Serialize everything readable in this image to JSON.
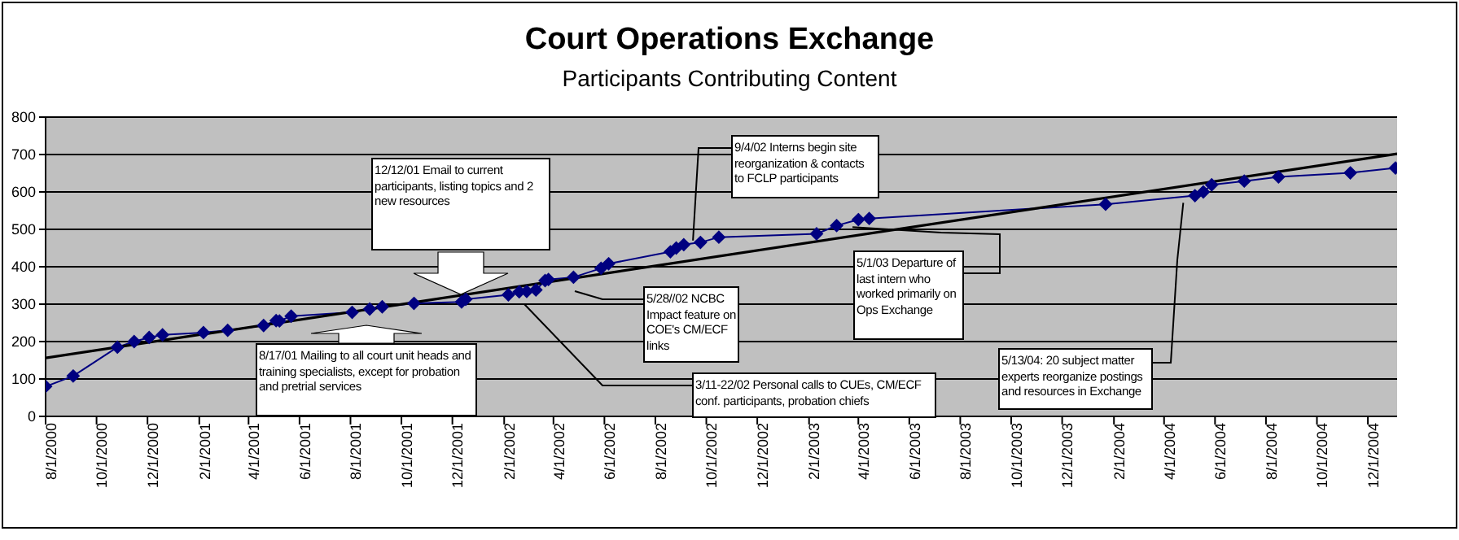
{
  "chart_data": {
    "type": "line",
    "title": "Court Operations Exchange",
    "subtitle": "Participants Contributing Content",
    "xlim": [
      "2000-08-01",
      "2005-01-05"
    ],
    "xticks": [
      {
        "value": "2000-08-01",
        "label": "8/1/2000"
      },
      {
        "value": "2000-10-01",
        "label": "10/1/2000"
      },
      {
        "value": "2000-12-01",
        "label": "12/1/2000"
      },
      {
        "value": "2001-02-01",
        "label": "2/1/2001"
      },
      {
        "value": "2001-04-01",
        "label": "4/1/2001"
      },
      {
        "value": "2001-06-01",
        "label": "6/1/2001"
      },
      {
        "value": "2001-08-01",
        "label": "8/1/2001"
      },
      {
        "value": "2001-10-01",
        "label": "10/1/2001"
      },
      {
        "value": "2001-12-01",
        "label": "12/1/2001"
      },
      {
        "value": "2002-02-01",
        "label": "2/1/2002"
      },
      {
        "value": "2002-04-01",
        "label": "4/1/2002"
      },
      {
        "value": "2002-06-01",
        "label": "6/1/2002"
      },
      {
        "value": "2002-08-01",
        "label": "8/1/2002"
      },
      {
        "value": "2002-10-01",
        "label": "10/1/2002"
      },
      {
        "value": "2002-12-01",
        "label": "12/1/2002"
      },
      {
        "value": "2003-02-01",
        "label": "2/1/2003"
      },
      {
        "value": "2003-04-01",
        "label": "4/1/2003"
      },
      {
        "value": "2003-06-01",
        "label": "6/1/2003"
      },
      {
        "value": "2003-08-01",
        "label": "8/1/2003"
      },
      {
        "value": "2003-10-01",
        "label": "10/1/2003"
      },
      {
        "value": "2003-12-01",
        "label": "12/1/2003"
      },
      {
        "value": "2004-02-01",
        "label": "2/1/2004"
      },
      {
        "value": "2004-04-01",
        "label": "4/1/2004"
      },
      {
        "value": "2004-06-01",
        "label": "6/1/2004"
      },
      {
        "value": "2004-08-01",
        "label": "8/1/2004"
      },
      {
        "value": "2004-10-01",
        "label": "10/1/2004"
      },
      {
        "value": "2004-12-01",
        "label": "12/1/2004"
      }
    ],
    "ylim": [
      0,
      800
    ],
    "yticks": [
      0,
      100,
      200,
      300,
      400,
      500,
      600,
      700,
      800
    ],
    "grid": "y",
    "legend": false,
    "series": [
      {
        "color": "#000080",
        "marker": "diamond",
        "x": [
          "2000-08-01",
          "2000-09-03",
          "2000-10-26",
          "2000-11-15",
          "2000-12-03",
          "2000-12-19",
          "2001-02-06",
          "2001-03-07",
          "2001-04-19",
          "2001-05-04",
          "2001-05-08",
          "2001-05-22",
          "2001-08-03",
          "2001-08-24",
          "2001-09-08",
          "2001-10-16",
          "2001-12-12",
          "2001-12-17",
          "2002-02-06",
          "2002-02-19",
          "2002-02-28",
          "2002-03-11",
          "2002-03-22",
          "2002-03-26",
          "2002-04-25",
          "2002-05-28",
          "2002-06-06",
          "2002-08-19",
          "2002-08-26",
          "2002-09-04",
          "2002-09-24",
          "2002-10-16",
          "2003-02-10",
          "2003-03-06",
          "2003-04-01",
          "2003-04-14",
          "2004-01-22",
          "2004-05-08",
          "2004-05-18",
          "2004-05-28",
          "2004-07-06",
          "2004-08-16",
          "2004-11-10",
          "2005-01-03"
        ],
        "values": [
          80,
          108,
          185,
          200,
          211,
          218,
          224,
          230,
          243,
          256,
          255,
          268,
          278,
          287,
          293,
          302,
          306,
          313,
          325,
          333,
          334,
          338,
          363,
          366,
          372,
          396,
          408,
          440,
          450,
          459,
          465,
          479,
          488,
          510,
          526,
          529,
          567,
          590,
          600,
          619,
          629,
          640,
          651,
          664
        ]
      },
      {
        "type": "line",
        "color": "#000000",
        "marker": "none",
        "x": [
          "2000-08-01",
          "2005-01-05"
        ],
        "values": [
          156,
          702
        ]
      }
    ],
    "annotations": [
      "12/12/01 Email to current participants, listing topics and 2 new resources",
      "8/17/01 Mailing to all court unit heads and training specialists, except for probation and pretrial services",
      {
        "text": "9/4/02 Interns begin site reorganization & contacts to FCLP participants",
        "x": "2002-09-15",
        "y": 470
      },
      "5/28//02 NCBC Impact feature on COE's CM/ECF links",
      "3/11-22/02 Personal calls to CUEs, CM/ECF conf. participants, probation chiefs",
      {
        "text": "5/1/03 Departure of last intern who worked primarily on Ops Exchange",
        "x": "2003-03-25",
        "y": 506
      },
      {
        "text": "5/13/04: 20 subject matter experts reorganize postings and resources in Exchange",
        "x": "2004-04-24",
        "y": 571
      }
    ]
  }
}
